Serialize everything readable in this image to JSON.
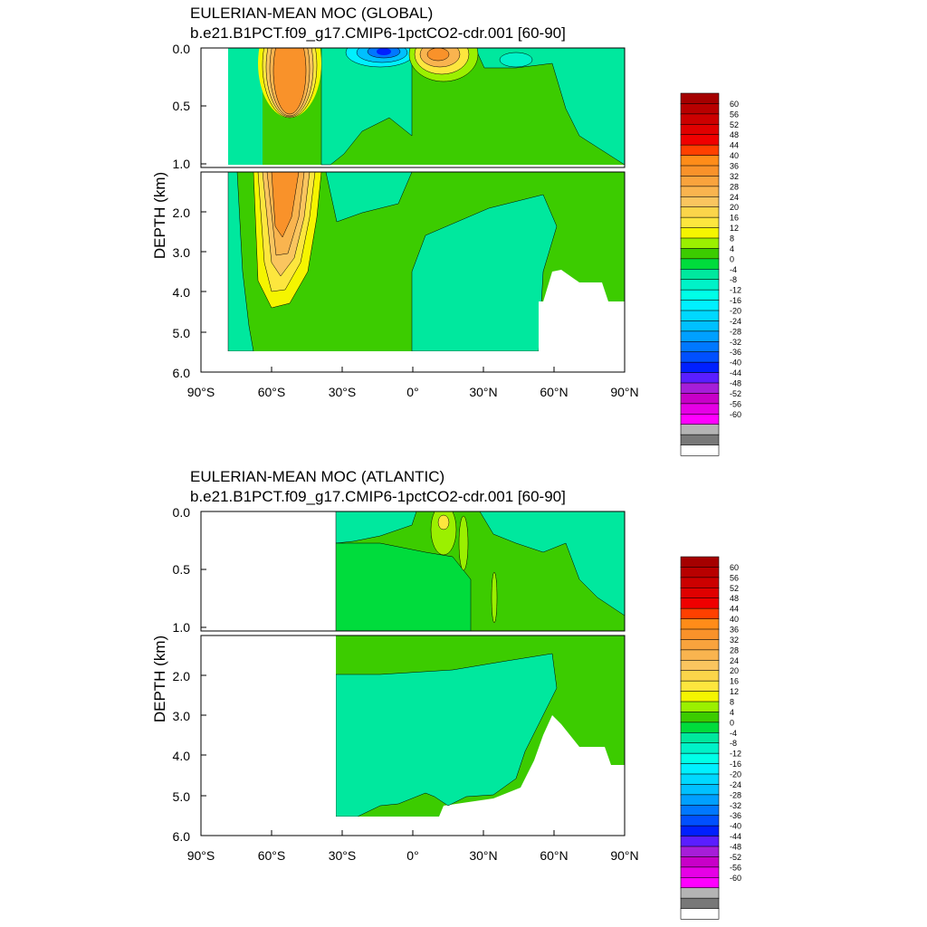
{
  "chart_data": [
    {
      "type": "heatmap",
      "title": "EULERIAN-MEAN MOC (GLOBAL)",
      "subtitle": "b.e21.B1PCT.f09_g17.CMIP6-1pctCO2-cdr.001 [60-90]",
      "ylabel": "DEPTH (km)",
      "xlabel": "",
      "xlim": [
        -90,
        90
      ],
      "ylim": [
        6.0,
        0.0
      ],
      "x_ticks": [
        "90°S",
        "60°S",
        "30°S",
        "0°",
        "30°N",
        "60°N",
        "90°N"
      ],
      "y_ticks_upper": [
        "0.0",
        "0.5",
        "1.0"
      ],
      "y_ticks_lower": [
        "2.0",
        "3.0",
        "4.0",
        "5.0",
        "6.0"
      ],
      "features": [
        {
          "name": "Southern Ocean positive cell",
          "lat_center": -50,
          "depth_km": 2.0,
          "approx_value": 36
        },
        {
          "name": "Southern tropical negative cell",
          "lat_center": -12,
          "depth_km": 0.05,
          "approx_value": -36
        },
        {
          "name": "Northern tropical positive cell",
          "lat_center": 12,
          "depth_km": 0.05,
          "approx_value": 32
        },
        {
          "name": "Deep abyssal negative cell",
          "lat_center": 20,
          "depth_km": 4.0,
          "approx_value": -2
        }
      ],
      "legend": {
        "placement": "right",
        "labels": [
          "60",
          "56",
          "52",
          "48",
          "44",
          "40",
          "36",
          "32",
          "28",
          "24",
          "20",
          "16",
          "12",
          "8",
          "4",
          "0",
          "-4",
          "-8",
          "-12",
          "-16",
          "-20",
          "-24",
          "-28",
          "-32",
          "-36",
          "-40",
          "-44",
          "-48",
          "-52",
          "-56",
          "-60"
        ]
      }
    },
    {
      "type": "heatmap",
      "title": "EULERIAN-MEAN MOC (ATLANTIC)",
      "subtitle": "b.e21.B1PCT.f09_g17.CMIP6-1pctCO2-cdr.001 [60-90]",
      "ylabel": "DEPTH (km)",
      "xlabel": "",
      "xlim": [
        -90,
        90
      ],
      "ylim": [
        6.0,
        0.0
      ],
      "x_ticks": [
        "90°S",
        "60°S",
        "30°S",
        "0°",
        "30°N",
        "60°N",
        "90°N"
      ],
      "y_ticks_upper": [
        "0.0",
        "0.5",
        "1.0"
      ],
      "y_ticks_lower": [
        "2.0",
        "3.0",
        "4.0",
        "5.0",
        "6.0"
      ],
      "features": [
        {
          "name": "Upper positive cell",
          "lat_center": 10,
          "depth_km": 1.0,
          "approx_value": 6
        },
        {
          "name": "Tropical maximum",
          "lat_center": 12,
          "depth_km": 0.1,
          "approx_value": 14
        },
        {
          "name": "Deep negative cell",
          "lat_center": 10,
          "depth_km": 4.0,
          "approx_value": -2
        }
      ],
      "legend": {
        "placement": "right",
        "labels": [
          "60",
          "56",
          "52",
          "48",
          "44",
          "40",
          "36",
          "32",
          "28",
          "24",
          "20",
          "16",
          "12",
          "8",
          "4",
          "0",
          "-4",
          "-8",
          "-12",
          "-16",
          "-20",
          "-24",
          "-28",
          "-32",
          "-36",
          "-40",
          "-44",
          "-48",
          "-52",
          "-56",
          "-60"
        ]
      }
    }
  ],
  "colors": {
    "colorbar": [
      "#a50000",
      "#b80000",
      "#cc0000",
      "#e00000",
      "#f00000",
      "#ff4000",
      "#ff8c19",
      "#f9922a",
      "#f9a33d",
      "#f9b44f",
      "#fac55f",
      "#fbd54a",
      "#fde63e",
      "#f5f500",
      "#9bf000",
      "#3ccc00",
      "#00dc3c",
      "#00e89e",
      "#00f2c8",
      "#00ffe7",
      "#00f0ff",
      "#00d8ff",
      "#00c0ff",
      "#00a0ff",
      "#0078ff",
      "#0050ff",
      "#0020ff",
      "#5a1eff",
      "#a61ed8",
      "#c800c8",
      "#e600e6",
      "#ff00ff",
      "#b4b4b4",
      "#787878",
      "#ffffff"
    ]
  }
}
